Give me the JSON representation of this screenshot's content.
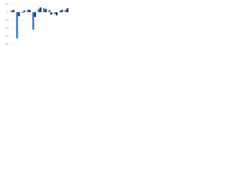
{
  "chart_data": {
    "type": "bar",
    "categories": [
      null,
      null,
      null,
      null,
      null,
      null,
      null,
      null,
      null,
      null,
      null
    ],
    "series": [
      {
        "name": "Series 1",
        "color": "#3a78c2",
        "values": [
          2,
          -33,
          -1,
          3,
          -22,
          4,
          5,
          3,
          -2,
          2,
          3
        ]
      },
      {
        "name": "Series 2",
        "color": "#24385e",
        "values": [
          3,
          -5,
          2,
          3,
          -6,
          6,
          4,
          -3,
          -4,
          3,
          5
        ]
      }
    ],
    "ylim": [
      -40,
      10
    ],
    "yticks": [
      -40,
      -30,
      -20,
      -10,
      0,
      10
    ],
    "grid": true
  }
}
